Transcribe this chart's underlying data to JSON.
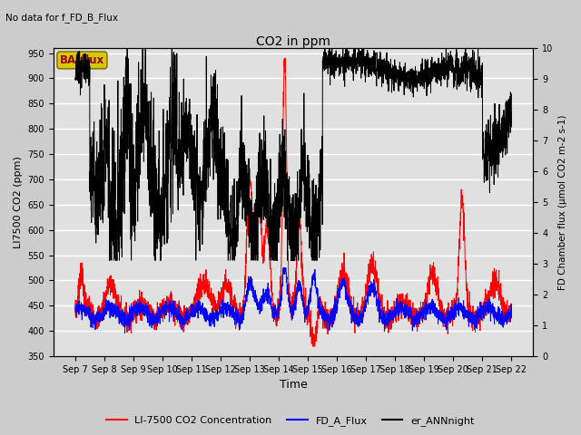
{
  "title": "CO2 in ppm",
  "top_left_text": "No data for f_FD_B_Flux",
  "xlabel": "Time",
  "ylabel_left": "LI7500 CO2 (ppm)",
  "ylabel_right": "FD Chamber flux (μmol CO2 m-2 s-1)",
  "ylim_left": [
    350,
    960
  ],
  "ylim_right": [
    0.0,
    10.0
  ],
  "yticks_left": [
    350,
    400,
    450,
    500,
    550,
    600,
    650,
    700,
    750,
    800,
    850,
    900,
    950
  ],
  "yticks_right": [
    0.0,
    1.0,
    2.0,
    3.0,
    4.0,
    5.0,
    6.0,
    7.0,
    8.0,
    9.0,
    10.0
  ],
  "xtick_labels": [
    "Sep 7",
    "Sep 8",
    "Sep 9",
    "Sep 10",
    "Sep 11",
    "Sep 12",
    "Sep 13",
    "Sep 14",
    "Sep 15",
    "Sep 16",
    "Sep 17",
    "Sep 18",
    "Sep 19",
    "Sep 20",
    "Sep 21",
    "Sep 22"
  ],
  "ba_flux_box_color": "#d4c800",
  "ba_flux_text_color": "#990000",
  "legend_entries": [
    {
      "label": "LI-7500 CO2 Concentration",
      "color": "red"
    },
    {
      "label": "FD_A_Flux",
      "color": "blue"
    },
    {
      "label": "er_ANNnight",
      "color": "black"
    }
  ],
  "bg_color": "#cccccc",
  "axes_bg_color": "#e0e0e0",
  "grid_color": "white",
  "n_points": 3000,
  "seed": 7
}
